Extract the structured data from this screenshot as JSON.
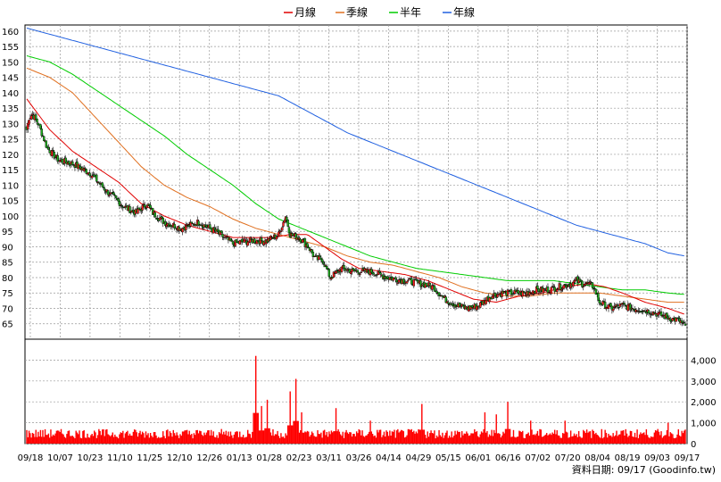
{
  "chart_data": {
    "type": "candlestick",
    "legend": [
      {
        "name": "月線",
        "color": "#e00000"
      },
      {
        "name": "季線",
        "color": "#e07020"
      },
      {
        "name": "半年",
        "color": "#00cc00"
      },
      {
        "name": "年線",
        "color": "#2060e0"
      }
    ],
    "price_axis": {
      "min": 60,
      "max": 162,
      "ticks": [
        65,
        70,
        75,
        80,
        85,
        90,
        95,
        100,
        105,
        110,
        115,
        120,
        125,
        130,
        135,
        140,
        145,
        150,
        155,
        160
      ]
    },
    "volume_axis": {
      "min": 0,
      "max": 5000,
      "ticks": [
        0,
        1000,
        2000,
        3000,
        4000
      ],
      "tick_labels": [
        "0",
        "1,000",
        "2,000",
        "3,000",
        "4,000"
      ]
    },
    "x_labels": [
      "09/18",
      "10/07",
      "10/23",
      "11/10",
      "11/25",
      "12/10",
      "12/26",
      "01/13",
      "01/28",
      "02/23",
      "03/11",
      "03/26",
      "04/14",
      "04/29",
      "05/15",
      "06/01",
      "06/16",
      "07/02",
      "07/20",
      "08/04",
      "08/19",
      "09/03",
      "09/17"
    ],
    "close_anchors": [
      [
        0,
        128
      ],
      [
        2,
        132
      ],
      [
        5,
        133
      ],
      [
        10,
        130
      ],
      [
        18,
        122
      ],
      [
        28,
        118
      ],
      [
        40,
        117
      ],
      [
        55,
        114
      ],
      [
        70,
        108
      ],
      [
        85,
        103
      ],
      [
        95,
        101
      ],
      [
        105,
        104
      ],
      [
        110,
        101
      ],
      [
        120,
        98
      ],
      [
        135,
        96
      ],
      [
        150,
        98
      ],
      [
        165,
        95
      ],
      [
        180,
        91
      ],
      [
        195,
        92
      ],
      [
        210,
        92
      ],
      [
        220,
        94
      ],
      [
        226,
        100
      ],
      [
        230,
        94
      ],
      [
        238,
        93
      ],
      [
        246,
        90
      ],
      [
        252,
        86
      ],
      [
        258,
        86
      ],
      [
        265,
        80
      ],
      [
        275,
        83
      ],
      [
        285,
        82
      ],
      [
        300,
        82
      ],
      [
        315,
        80
      ],
      [
        330,
        79
      ],
      [
        345,
        78
      ],
      [
        355,
        77
      ],
      [
        365,
        73
      ],
      [
        375,
        71
      ],
      [
        385,
        70
      ],
      [
        395,
        71
      ],
      [
        405,
        74
      ],
      [
        415,
        75
      ],
      [
        425,
        75
      ],
      [
        435,
        75
      ],
      [
        445,
        76
      ],
      [
        455,
        76
      ],
      [
        465,
        77
      ],
      [
        475,
        78
      ],
      [
        480,
        79
      ],
      [
        485,
        78
      ],
      [
        490,
        78
      ],
      [
        495,
        77
      ],
      [
        500,
        72
      ],
      [
        510,
        70
      ],
      [
        520,
        71
      ],
      [
        530,
        70
      ],
      [
        545,
        69
      ],
      [
        560,
        67
      ],
      [
        570,
        66
      ],
      [
        575,
        64
      ]
    ],
    "ma_month": [
      [
        0,
        138
      ],
      [
        20,
        128
      ],
      [
        40,
        121
      ],
      [
        60,
        116
      ],
      [
        80,
        111
      ],
      [
        100,
        104
      ],
      [
        120,
        100
      ],
      [
        140,
        97
      ],
      [
        160,
        95
      ],
      [
        180,
        93
      ],
      [
        200,
        93
      ],
      [
        215,
        93
      ],
      [
        230,
        94
      ],
      [
        245,
        94
      ],
      [
        260,
        90
      ],
      [
        275,
        86
      ],
      [
        290,
        83
      ],
      [
        310,
        82
      ],
      [
        330,
        81
      ],
      [
        350,
        79
      ],
      [
        370,
        76
      ],
      [
        390,
        73
      ],
      [
        410,
        72
      ],
      [
        430,
        74
      ],
      [
        450,
        75
      ],
      [
        470,
        77
      ],
      [
        490,
        78
      ],
      [
        505,
        77
      ],
      [
        520,
        75
      ],
      [
        540,
        72
      ],
      [
        560,
        70
      ],
      [
        575,
        68
      ]
    ],
    "ma_quarter": [
      [
        0,
        148
      ],
      [
        20,
        145
      ],
      [
        40,
        140
      ],
      [
        60,
        132
      ],
      [
        80,
        124
      ],
      [
        100,
        116
      ],
      [
        120,
        110
      ],
      [
        140,
        106
      ],
      [
        160,
        103
      ],
      [
        180,
        99
      ],
      [
        200,
        96
      ],
      [
        220,
        94
      ],
      [
        240,
        92
      ],
      [
        260,
        90
      ],
      [
        280,
        87
      ],
      [
        300,
        85
      ],
      [
        320,
        84
      ],
      [
        340,
        82
      ],
      [
        360,
        80
      ],
      [
        380,
        77
      ],
      [
        400,
        75
      ],
      [
        420,
        74
      ],
      [
        440,
        74
      ],
      [
        460,
        75
      ],
      [
        480,
        75
      ],
      [
        500,
        75
      ],
      [
        520,
        74
      ],
      [
        540,
        73
      ],
      [
        560,
        72
      ],
      [
        575,
        72
      ]
    ],
    "ma_half": [
      [
        0,
        152
      ],
      [
        20,
        150
      ],
      [
        40,
        146
      ],
      [
        60,
        141
      ],
      [
        80,
        136
      ],
      [
        100,
        131
      ],
      [
        120,
        126
      ],
      [
        140,
        120
      ],
      [
        160,
        115
      ],
      [
        180,
        110
      ],
      [
        200,
        104
      ],
      [
        220,
        99
      ],
      [
        240,
        96
      ],
      [
        260,
        93
      ],
      [
        280,
        90
      ],
      [
        300,
        87
      ],
      [
        320,
        85
      ],
      [
        340,
        83
      ],
      [
        360,
        82
      ],
      [
        380,
        81
      ],
      [
        400,
        80
      ],
      [
        420,
        79
      ],
      [
        440,
        79
      ],
      [
        460,
        79
      ],
      [
        480,
        78
      ],
      [
        500,
        77
      ],
      [
        520,
        76
      ],
      [
        540,
        76
      ],
      [
        560,
        75
      ],
      [
        575,
        74.5
      ]
    ],
    "ma_year": [
      [
        0,
        161
      ],
      [
        20,
        159
      ],
      [
        40,
        157
      ],
      [
        60,
        155
      ],
      [
        80,
        153
      ],
      [
        100,
        151
      ],
      [
        120,
        149
      ],
      [
        140,
        147
      ],
      [
        160,
        145
      ],
      [
        180,
        143
      ],
      [
        200,
        141
      ],
      [
        220,
        139
      ],
      [
        240,
        135
      ],
      [
        260,
        131
      ],
      [
        280,
        127
      ],
      [
        300,
        124
      ],
      [
        320,
        121
      ],
      [
        340,
        118
      ],
      [
        360,
        115
      ],
      [
        380,
        112
      ],
      [
        400,
        109
      ],
      [
        420,
        106
      ],
      [
        440,
        103
      ],
      [
        460,
        100
      ],
      [
        480,
        97
      ],
      [
        500,
        95
      ],
      [
        520,
        93
      ],
      [
        540,
        91
      ],
      [
        560,
        88
      ],
      [
        575,
        87
      ]
    ],
    "volume_spikes": [
      [
        200,
        4200
      ],
      [
        205,
        1800
      ],
      [
        210,
        2100
      ],
      [
        230,
        2500
      ],
      [
        235,
        3100
      ],
      [
        240,
        1500
      ],
      [
        270,
        1700
      ],
      [
        300,
        1100
      ],
      [
        345,
        1900
      ],
      [
        400,
        1500
      ],
      [
        410,
        1400
      ],
      [
        420,
        2000
      ],
      [
        440,
        1100
      ],
      [
        470,
        1100
      ],
      [
        560,
        1000
      ]
    ]
  },
  "source_label": "資料日期: 09/17  (Goodinfo.tw)"
}
